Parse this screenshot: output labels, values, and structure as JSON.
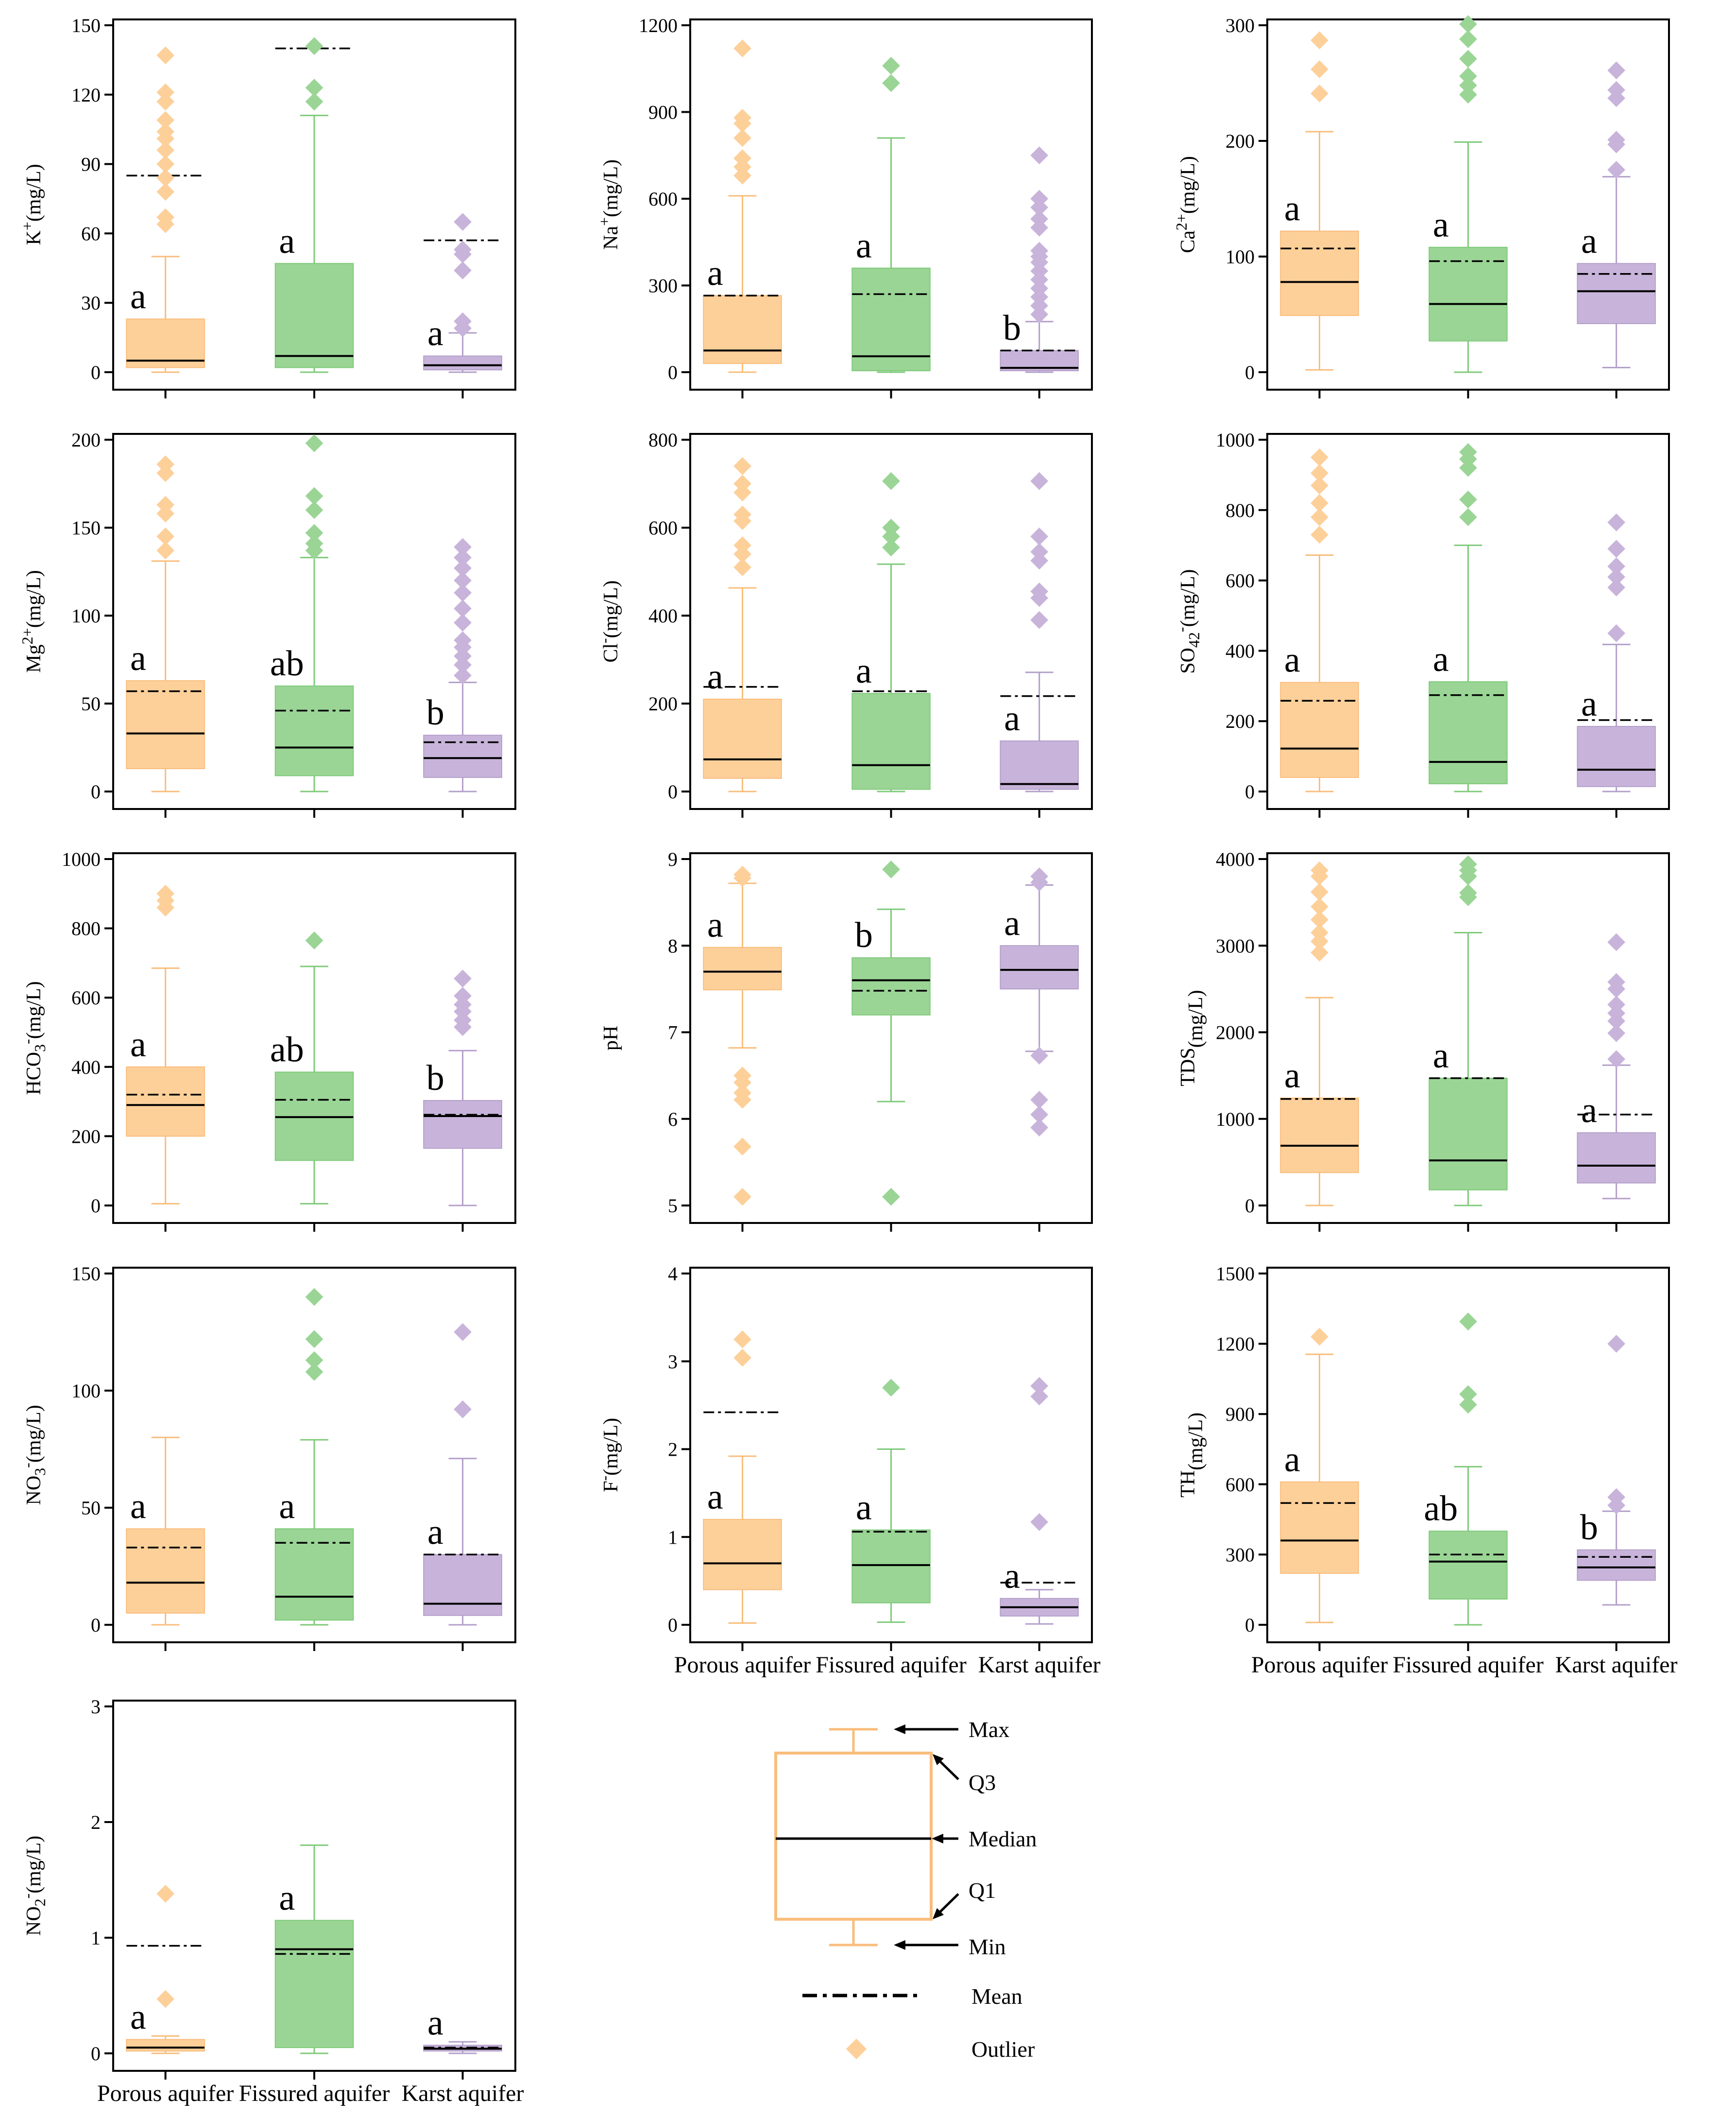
{
  "colors": {
    "Porous aquifer": {
      "fill": "#fdd09a",
      "stroke": "#f9bd7c"
    },
    "Fissured aquifer": {
      "fill": "#9ad595",
      "stroke": "#7fca7a"
    },
    "Karst aquifer": {
      "fill": "#c8b4da",
      "stroke": "#b39fca"
    }
  },
  "chart_data": [
    {
      "type": "box",
      "ylabel": "K+(mg/L)",
      "ylim": [
        0,
        150
      ],
      "yticks": [
        0,
        30,
        60,
        90,
        120,
        150
      ],
      "show_categories": false,
      "categories": [
        "Porous aquifer",
        "Fissured aquifer",
        "Karst aquifer"
      ],
      "series": [
        {
          "name": "Porous aquifer",
          "min": 0,
          "q1": 2,
          "median": 5,
          "q3": 23,
          "max": 50,
          "mean": 85,
          "outliers": [
            64,
            67,
            78,
            84,
            90,
            96,
            101,
            104,
            109,
            117,
            121,
            137
          ],
          "letter": "a"
        },
        {
          "name": "Fissured aquifer",
          "min": 0,
          "q1": 2,
          "median": 7,
          "q3": 47,
          "max": 111,
          "mean": 140,
          "outliers": [
            117,
            123,
            141
          ],
          "letter": "a"
        },
        {
          "name": "Karst aquifer",
          "min": 0,
          "q1": 1,
          "median": 3,
          "q3": 7,
          "max": 17,
          "mean": 57,
          "outliers": [
            19,
            22,
            44,
            51,
            53,
            65
          ],
          "letter": "a"
        }
      ]
    },
    {
      "type": "box",
      "ylabel": "Na+(mg/L)",
      "ylim": [
        0,
        1200
      ],
      "yticks": [
        0,
        300,
        600,
        900,
        1200
      ],
      "show_categories": false,
      "categories": [
        "Porous aquifer",
        "Fissured aquifer",
        "Karst aquifer"
      ],
      "series": [
        {
          "name": "Porous aquifer",
          "min": 0,
          "q1": 30,
          "median": 75,
          "q3": 265,
          "max": 610,
          "mean": 265,
          "outliers": [
            680,
            710,
            740,
            810,
            860,
            880,
            1120
          ],
          "letter": "a"
        },
        {
          "name": "Fissured aquifer",
          "min": 0,
          "q1": 5,
          "median": 55,
          "q3": 360,
          "max": 810,
          "mean": 270,
          "outliers": [
            1000,
            1060
          ],
          "letter": "a"
        },
        {
          "name": "Karst aquifer",
          "min": 0,
          "q1": 5,
          "median": 15,
          "q3": 75,
          "max": 175,
          "mean": 75,
          "outliers": [
            200,
            230,
            260,
            290,
            320,
            350,
            380,
            400,
            420,
            500,
            530,
            570,
            600,
            750
          ],
          "letter": "b"
        }
      ]
    },
    {
      "type": "box",
      "ylabel": "Ca2+(mg/L)",
      "ylim": [
        0,
        300
      ],
      "yticks": [
        0,
        100,
        200,
        300
      ],
      "show_categories": false,
      "categories": [
        "Porous aquifer",
        "Fissured aquifer",
        "Karst aquifer"
      ],
      "series": [
        {
          "name": "Porous aquifer",
          "min": 2,
          "q1": 49,
          "median": 78,
          "q3": 122,
          "max": 208,
          "mean": 107,
          "outliers": [
            241,
            262,
            287
          ],
          "letter": "a"
        },
        {
          "name": "Fissured aquifer",
          "min": 0,
          "q1": 27,
          "median": 59,
          "q3": 108,
          "max": 199,
          "mean": 96,
          "outliers": [
            240,
            248,
            256,
            271,
            288,
            301
          ],
          "letter": "a"
        },
        {
          "name": "Karst aquifer",
          "min": 4,
          "q1": 42,
          "median": 70,
          "q3": 94,
          "max": 169,
          "mean": 85,
          "outliers": [
            175,
            197,
            201,
            237,
            244,
            261
          ],
          "letter": "a"
        }
      ]
    },
    {
      "type": "box",
      "ylabel": "Mg2+(mg/L)",
      "ylim": [
        0,
        200
      ],
      "yticks": [
        0,
        50,
        100,
        150,
        200
      ],
      "show_categories": false,
      "categories": [
        "Porous aquifer",
        "Fissured aquifer",
        "Karst aquifer"
      ],
      "series": [
        {
          "name": "Porous aquifer",
          "min": 0,
          "q1": 13,
          "median": 33,
          "q3": 63,
          "max": 131,
          "mean": 57,
          "outliers": [
            137,
            145,
            158,
            163,
            181,
            186
          ],
          "letter": "a"
        },
        {
          "name": "Fissured aquifer",
          "min": 0,
          "q1": 9,
          "median": 25,
          "q3": 60,
          "max": 133,
          "mean": 46,
          "outliers": [
            137,
            141,
            147,
            160,
            168,
            198
          ],
          "letter": "ab"
        },
        {
          "name": "Karst aquifer",
          "min": 0,
          "q1": 8,
          "median": 19,
          "q3": 32,
          "max": 62,
          "mean": 28,
          "outliers": [
            66,
            72,
            77,
            82,
            86,
            96,
            104,
            113,
            120,
            127,
            133,
            139
          ],
          "letter": "b"
        }
      ]
    },
    {
      "type": "box",
      "ylabel": "Cl-(mg/L)",
      "ylim": [
        0,
        800
      ],
      "yticks": [
        0,
        200,
        400,
        600,
        800
      ],
      "show_categories": false,
      "categories": [
        "Porous aquifer",
        "Fissured aquifer",
        "Karst aquifer"
      ],
      "series": [
        {
          "name": "Porous aquifer",
          "min": 0,
          "q1": 30,
          "median": 73,
          "q3": 210,
          "max": 463,
          "mean": 238,
          "outliers": [
            510,
            540,
            560,
            615,
            630,
            680,
            700,
            740
          ],
          "letter": "a"
        },
        {
          "name": "Fissured aquifer",
          "min": 0,
          "q1": 5,
          "median": 60,
          "q3": 223,
          "max": 517,
          "mean": 228,
          "outliers": [
            555,
            580,
            600,
            706
          ],
          "letter": "a"
        },
        {
          "name": "Karst aquifer",
          "min": 0,
          "q1": 5,
          "median": 17,
          "q3": 115,
          "max": 271,
          "mean": 217,
          "outliers": [
            390,
            440,
            455,
            525,
            545,
            580,
            706
          ],
          "letter": "a"
        }
      ]
    },
    {
      "type": "box",
      "ylabel": "SO42-(mg/L)",
      "ylim": [
        0,
        1000
      ],
      "yticks": [
        0,
        200,
        400,
        600,
        800,
        1000
      ],
      "show_categories": false,
      "categories": [
        "Porous aquifer",
        "Fissured aquifer",
        "Karst aquifer"
      ],
      "series": [
        {
          "name": "Porous aquifer",
          "min": 0,
          "q1": 40,
          "median": 122,
          "q3": 310,
          "max": 672,
          "mean": 258,
          "outliers": [
            730,
            780,
            820,
            870,
            905,
            950
          ],
          "letter": "a"
        },
        {
          "name": "Fissured aquifer",
          "min": 0,
          "q1": 22,
          "median": 84,
          "q3": 312,
          "max": 700,
          "mean": 274,
          "outliers": [
            780,
            830,
            920,
            945,
            965
          ],
          "letter": "a"
        },
        {
          "name": "Karst aquifer",
          "min": 0,
          "q1": 14,
          "median": 62,
          "q3": 185,
          "max": 418,
          "mean": 203,
          "outliers": [
            450,
            580,
            610,
            640,
            690,
            765
          ],
          "letter": "a"
        }
      ]
    },
    {
      "type": "box",
      "ylabel": "HCO3-(mg/L)",
      "ylim": [
        0,
        1000
      ],
      "yticks": [
        0,
        200,
        400,
        600,
        800,
        1000
      ],
      "show_categories": false,
      "categories": [
        "Porous aquifer",
        "Fissured aquifer",
        "Karst aquifer"
      ],
      "series": [
        {
          "name": "Porous aquifer",
          "min": 5,
          "q1": 200,
          "median": 290,
          "q3": 400,
          "max": 685,
          "mean": 320,
          "outliers": [
            860,
            880,
            900
          ],
          "letter": "a"
        },
        {
          "name": "Fissured aquifer",
          "min": 5,
          "q1": 130,
          "median": 255,
          "q3": 385,
          "max": 690,
          "mean": 305,
          "outliers": [
            765
          ],
          "letter": "ab"
        },
        {
          "name": "Karst aquifer",
          "min": 0,
          "q1": 165,
          "median": 258,
          "q3": 303,
          "max": 447,
          "mean": 262,
          "outliers": [
            515,
            535,
            560,
            580,
            605,
            655
          ],
          "letter": "b"
        }
      ]
    },
    {
      "type": "box",
      "ylabel": "pH",
      "ylim": [
        5,
        9
      ],
      "yticks": [
        5,
        6,
        7,
        8,
        9
      ],
      "show_categories": false,
      "categories": [
        "Porous aquifer",
        "Fissured aquifer",
        "Karst aquifer"
      ],
      "series": [
        {
          "name": "Porous aquifer",
          "min": 6.82,
          "q1": 7.49,
          "median": 7.7,
          "q3": 7.98,
          "max": 8.72,
          "mean": 7.7,
          "outliers": [
            5.1,
            5.68,
            6.22,
            6.3,
            6.42,
            6.5,
            8.78,
            8.82
          ],
          "letter": "a"
        },
        {
          "name": "Fissured aquifer",
          "min": 6.2,
          "q1": 7.2,
          "median": 7.6,
          "q3": 7.86,
          "max": 8.42,
          "mean": 7.48,
          "outliers": [
            5.1,
            8.88
          ],
          "letter": "b"
        },
        {
          "name": "Karst aquifer",
          "min": 6.78,
          "q1": 7.5,
          "median": 7.72,
          "q3": 8.0,
          "max": 8.7,
          "mean": 7.72,
          "outliers": [
            5.9,
            6.05,
            6.22,
            6.73,
            8.73,
            8.8
          ],
          "letter": "a"
        }
      ]
    },
    {
      "type": "box",
      "ylabel": "TDS(mg/L)",
      "ylim": [
        0,
        4000
      ],
      "yticks": [
        0,
        1000,
        2000,
        3000,
        4000
      ],
      "show_categories": false,
      "categories": [
        "Porous aquifer",
        "Fissured aquifer",
        "Karst aquifer"
      ],
      "series": [
        {
          "name": "Porous aquifer",
          "min": 0,
          "q1": 380,
          "median": 690,
          "q3": 1240,
          "max": 2400,
          "mean": 1230,
          "outliers": [
            2920,
            3050,
            3150,
            3300,
            3450,
            3620,
            3800,
            3870
          ],
          "letter": "a"
        },
        {
          "name": "Fissured aquifer",
          "min": 0,
          "q1": 180,
          "median": 520,
          "q3": 1470,
          "max": 3150,
          "mean": 1470,
          "outliers": [
            3560,
            3610,
            3800,
            3870,
            3940
          ],
          "letter": "a"
        },
        {
          "name": "Karst aquifer",
          "min": 80,
          "q1": 260,
          "median": 460,
          "q3": 840,
          "max": 1620,
          "mean": 1050,
          "outliers": [
            1690,
            1990,
            2130,
            2220,
            2320,
            2500,
            2580,
            3040
          ],
          "letter": "a"
        }
      ]
    },
    {
      "type": "box",
      "ylabel": "NO3-(mg/L)",
      "ylim": [
        0,
        150
      ],
      "yticks": [
        0,
        50,
        100,
        150
      ],
      "show_categories": false,
      "categories": [
        "Porous aquifer",
        "Fissured aquifer",
        "Karst aquifer"
      ],
      "series": [
        {
          "name": "Porous aquifer",
          "min": 0,
          "q1": 5,
          "median": 18,
          "q3": 41,
          "max": 80,
          "mean": 33,
          "outliers": [],
          "letter": "a"
        },
        {
          "name": "Fissured aquifer",
          "min": 0,
          "q1": 2,
          "median": 12,
          "q3": 41,
          "max": 79,
          "mean": 35,
          "outliers": [
            108,
            113,
            122,
            140
          ],
          "letter": "a"
        },
        {
          "name": "Karst aquifer",
          "min": 0,
          "q1": 4,
          "median": 9,
          "q3": 30,
          "max": 71,
          "mean": 30,
          "outliers": [
            92,
            125
          ],
          "letter": "a"
        }
      ]
    },
    {
      "type": "box",
      "ylabel": "F-(mg/L)",
      "ylim": [
        0,
        4
      ],
      "yticks": [
        0,
        1,
        2,
        3,
        4
      ],
      "show_categories": true,
      "categories": [
        "Porous aquifer",
        "Fissured aquifer",
        "Karst aquifer"
      ],
      "series": [
        {
          "name": "Porous aquifer",
          "min": 0.02,
          "q1": 0.4,
          "median": 0.7,
          "q3": 1.2,
          "max": 1.92,
          "mean": 2.42,
          "outliers": [
            3.04,
            3.25
          ],
          "letter": "a"
        },
        {
          "name": "Fissured aquifer",
          "min": 0.03,
          "q1": 0.25,
          "median": 0.68,
          "q3": 1.08,
          "max": 2.0,
          "mean": 1.06,
          "outliers": [
            2.7
          ],
          "letter": "a"
        },
        {
          "name": "Karst aquifer",
          "min": 0.01,
          "q1": 0.1,
          "median": 0.2,
          "q3": 0.3,
          "max": 0.4,
          "mean": 0.48,
          "outliers": [
            1.17,
            2.6,
            2.72
          ],
          "letter": "a"
        }
      ]
    },
    {
      "type": "box",
      "ylabel": "TH(mg/L)",
      "ylim": [
        0,
        1500
      ],
      "yticks": [
        0,
        300,
        600,
        900,
        1200,
        1500
      ],
      "show_categories": true,
      "categories": [
        "Porous aquifer",
        "Fissured aquifer",
        "Karst aquifer"
      ],
      "series": [
        {
          "name": "Porous aquifer",
          "min": 10,
          "q1": 220,
          "median": 360,
          "q3": 610,
          "max": 1155,
          "mean": 520,
          "outliers": [
            1230
          ],
          "letter": "a"
        },
        {
          "name": "Fissured aquifer",
          "min": 0,
          "q1": 110,
          "median": 270,
          "q3": 400,
          "max": 675,
          "mean": 300,
          "outliers": [
            940,
            985,
            1295
          ],
          "letter": "ab"
        },
        {
          "name": "Karst aquifer",
          "min": 85,
          "q1": 190,
          "median": 245,
          "q3": 320,
          "max": 485,
          "mean": 290,
          "outliers": [
            510,
            545,
            1200
          ],
          "letter": "b"
        }
      ]
    },
    {
      "type": "box",
      "ylabel": "NO2-(mg/L)",
      "ylim": [
        0,
        3
      ],
      "yticks": [
        0,
        1,
        2,
        3
      ],
      "show_categories": true,
      "categories": [
        "Porous aquifer",
        "Fissured aquifer",
        "Karst aquifer"
      ],
      "series": [
        {
          "name": "Porous aquifer",
          "min": 0,
          "q1": 0.02,
          "median": 0.05,
          "q3": 0.12,
          "max": 0.15,
          "mean": 0.93,
          "outliers": [
            0.47,
            1.38
          ],
          "letter": "a"
        },
        {
          "name": "Fissured aquifer",
          "min": 0,
          "q1": 0.05,
          "median": 0.9,
          "q3": 1.15,
          "max": 1.8,
          "mean": 0.86,
          "outliers": [],
          "letter": "a"
        },
        {
          "name": "Karst aquifer",
          "min": 0,
          "q1": 0.02,
          "median": 0.04,
          "q3": 0.07,
          "max": 0.1,
          "mean": 0.05,
          "outliers": [],
          "letter": "a"
        }
      ]
    }
  ],
  "legend": {
    "max": "Max",
    "q3": "Q3",
    "median": "Median",
    "q1": "Q1",
    "min": "Min",
    "mean": "Mean",
    "outlier": "Outlier"
  }
}
